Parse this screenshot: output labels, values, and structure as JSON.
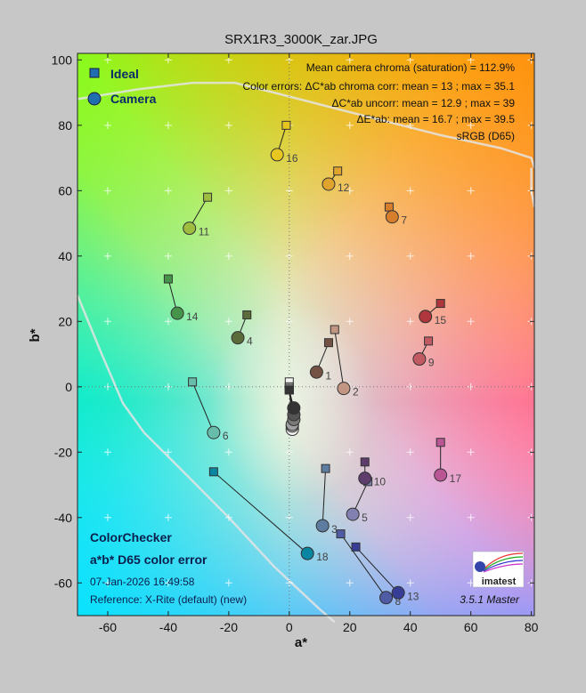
{
  "chart_data": {
    "type": "scatter",
    "title": "SRX1R3_3000K_zar.JPG",
    "xlabel": "a*",
    "ylabel": "b*",
    "xlim": [
      -70,
      81
    ],
    "ylim": [
      -70,
      102
    ],
    "xticks": [
      -60,
      -40,
      -20,
      0,
      20,
      40,
      60,
      80
    ],
    "yticks": [
      -60,
      -40,
      -20,
      0,
      20,
      40,
      60,
      80,
      100
    ],
    "grid": true,
    "legend_position": "top-left",
    "legend": [
      "Ideal",
      "Camera"
    ],
    "info_lines": [
      "Mean camera chroma (saturation) = 112.9%",
      "Color errors:  ΔC*ab chroma corr:   mean = 13 ;   max = 35.1",
      "ΔC*ab uncorr:   mean = 12.9 ;   max = 39",
      "ΔE*ab:   mean = 16.7 ;   max = 39.5",
      "sRGB (D65)"
    ],
    "panel_title": "ColorChecker",
    "panel_subtitle": "a*b* D65 color error",
    "timestamp": "07-Jan-2026 16:49:58",
    "reference": "Reference: X-Rite (default) (new)",
    "version": "3.5.1   Master",
    "logo_text": "imatest",
    "patches": [
      {
        "label": "1",
        "ideal": [
          13,
          13.5
        ],
        "camera": [
          9,
          4.5
        ],
        "color": "#735244"
      },
      {
        "label": "2",
        "ideal": [
          15,
          17.5
        ],
        "camera": [
          18,
          -0.5
        ],
        "color": "#c29682"
      },
      {
        "label": "3",
        "ideal": [
          12,
          -25
        ],
        "camera": [
          11,
          -42.5
        ],
        "color": "#5e7ba0"
      },
      {
        "label": "4",
        "ideal": [
          -14,
          22
        ],
        "camera": [
          -17,
          15
        ],
        "color": "#5b6b3a"
      },
      {
        "label": "5",
        "ideal": [
          26,
          -29
        ],
        "camera": [
          21,
          -39
        ],
        "color": "#8280b1"
      },
      {
        "label": "6",
        "ideal": [
          -32,
          1.5
        ],
        "camera": [
          -25,
          -14
        ],
        "color": "#67bdaa"
      },
      {
        "label": "7",
        "ideal": [
          33,
          55
        ],
        "camera": [
          34,
          52
        ],
        "color": "#d67e2c"
      },
      {
        "label": "8",
        "ideal": [
          17,
          -45
        ],
        "camera": [
          32,
          -64.5
        ],
        "color": "#505ba6"
      },
      {
        "label": "9",
        "ideal": [
          46,
          14
        ],
        "camera": [
          43,
          8.5
        ],
        "color": "#c15a63"
      },
      {
        "label": "10",
        "ideal": [
          25,
          -23
        ],
        "camera": [
          25,
          -28
        ],
        "color": "#5e3c6c"
      },
      {
        "label": "11",
        "ideal": [
          -27,
          58
        ],
        "camera": [
          -33,
          48.5
        ],
        "color": "#9dbc40"
      },
      {
        "label": "12",
        "ideal": [
          16,
          66
        ],
        "camera": [
          13,
          62
        ],
        "color": "#e0a32e"
      },
      {
        "label": "13",
        "ideal": [
          22,
          -49
        ],
        "camera": [
          36,
          -63
        ],
        "color": "#383d96"
      },
      {
        "label": "14",
        "ideal": [
          -40,
          33
        ],
        "camera": [
          -37,
          22.5
        ],
        "color": "#469449"
      },
      {
        "label": "15",
        "ideal": [
          50,
          25.5
        ],
        "camera": [
          45,
          21.5
        ],
        "color": "#af363c"
      },
      {
        "label": "16",
        "ideal": [
          -1,
          80
        ],
        "camera": [
          -4,
          71
        ],
        "color": "#e7c71f"
      },
      {
        "label": "17",
        "ideal": [
          50,
          -17
        ],
        "camera": [
          50,
          -27
        ],
        "color": "#bb5695"
      },
      {
        "label": "18",
        "ideal": [
          -25,
          -26
        ],
        "camera": [
          6,
          -51
        ],
        "color": "#0885a1"
      },
      {
        "label": "",
        "ideal": [
          0,
          1.5
        ],
        "camera": [
          1,
          -13
        ],
        "color": "#f3f3f2"
      },
      {
        "label": "",
        "ideal": [
          0,
          0
        ],
        "camera": [
          1,
          -12
        ],
        "color": "#c8c8c8"
      },
      {
        "label": "",
        "ideal": [
          0,
          -0.5
        ],
        "camera": [
          1,
          -11.5
        ],
        "color": "#a0a0a0"
      },
      {
        "label": "",
        "ideal": [
          0,
          -1
        ],
        "camera": [
          1.5,
          -10
        ],
        "color": "#7a7a79"
      },
      {
        "label": "",
        "ideal": [
          0,
          -1
        ],
        "camera": [
          1.5,
          -8.5
        ],
        "color": "#555555"
      },
      {
        "label": "",
        "ideal": [
          0,
          -1
        ],
        "camera": [
          1.5,
          -6.5
        ],
        "color": "#343434"
      }
    ]
  }
}
